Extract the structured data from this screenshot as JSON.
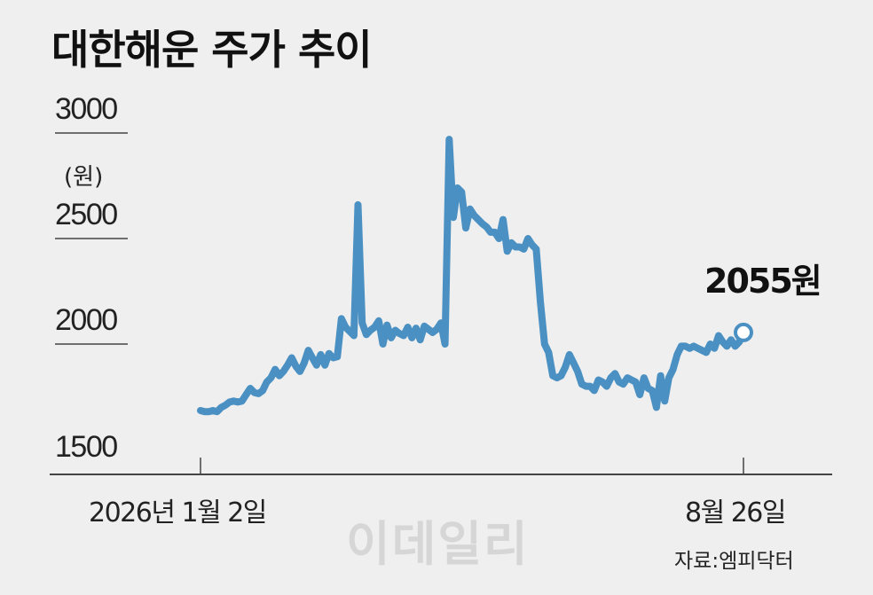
{
  "title": "대한해운 주가 추이",
  "unit": "(원)",
  "source": "자료:엠피닥터",
  "watermark": "이데일리",
  "colors": {
    "line": "#4a90c2",
    "axis": "#444444",
    "text": "#222222"
  },
  "chart_data": {
    "type": "line",
    "title": "대한해운 주가 추이",
    "ylabel": "(원)",
    "xlabel": "",
    "ylim": [
      1500,
      3000
    ],
    "yticks": [
      {
        "value": 3000,
        "label": "3000"
      },
      {
        "value": 2500,
        "label": "2500"
      },
      {
        "value": 2000,
        "label": "2000"
      },
      {
        "value": 1500,
        "label": "1500"
      }
    ],
    "xticks": [
      {
        "index": 0,
        "label": "2026년 1월 2일"
      },
      {
        "index": 131,
        "label": "8월 26일"
      }
    ],
    "end_annotation": "2055원",
    "grid": false,
    "series": [
      {
        "values": [
          1685,
          1680,
          1680,
          1685,
          1680,
          1700,
          1710,
          1725,
          1730,
          1725,
          1730,
          1760,
          1790,
          1770,
          1765,
          1780,
          1820,
          1840,
          1880,
          1850,
          1870,
          1900,
          1935,
          1895,
          1870,
          1910,
          1970,
          1935,
          1900,
          1950,
          1900,
          1955,
          1935,
          1940,
          2120,
          2080,
          2060,
          2040,
          2660,
          2100,
          2045,
          2065,
          2080,
          2110,
          2000,
          2090,
          2030,
          2065,
          2050,
          2040,
          2080,
          2030,
          2075,
          2020,
          2085,
          2070,
          2055,
          2070,
          2100,
          2000,
          2970,
          2600,
          2740,
          2720,
          2550,
          2640,
          2610,
          2590,
          2570,
          2555,
          2530,
          2530,
          2500,
          2590,
          2440,
          2480,
          2460,
          2460,
          2450,
          2500,
          2470,
          2450,
          2200,
          2000,
          1960,
          1850,
          1840,
          1850,
          1890,
          1950,
          1910,
          1870,
          1810,
          1800,
          1800,
          1780,
          1830,
          1820,
          1800,
          1840,
          1860,
          1820,
          1810,
          1840,
          1830,
          1820,
          1760,
          1840,
          1790,
          1780,
          1700,
          1850,
          1730,
          1840,
          1880,
          1950,
          1990,
          1990,
          1980,
          1990,
          1980,
          1970,
          1960,
          2000,
          1980,
          2040,
          2010,
          1990,
          2020,
          1990,
          2010,
          2055
        ]
      }
    ]
  }
}
